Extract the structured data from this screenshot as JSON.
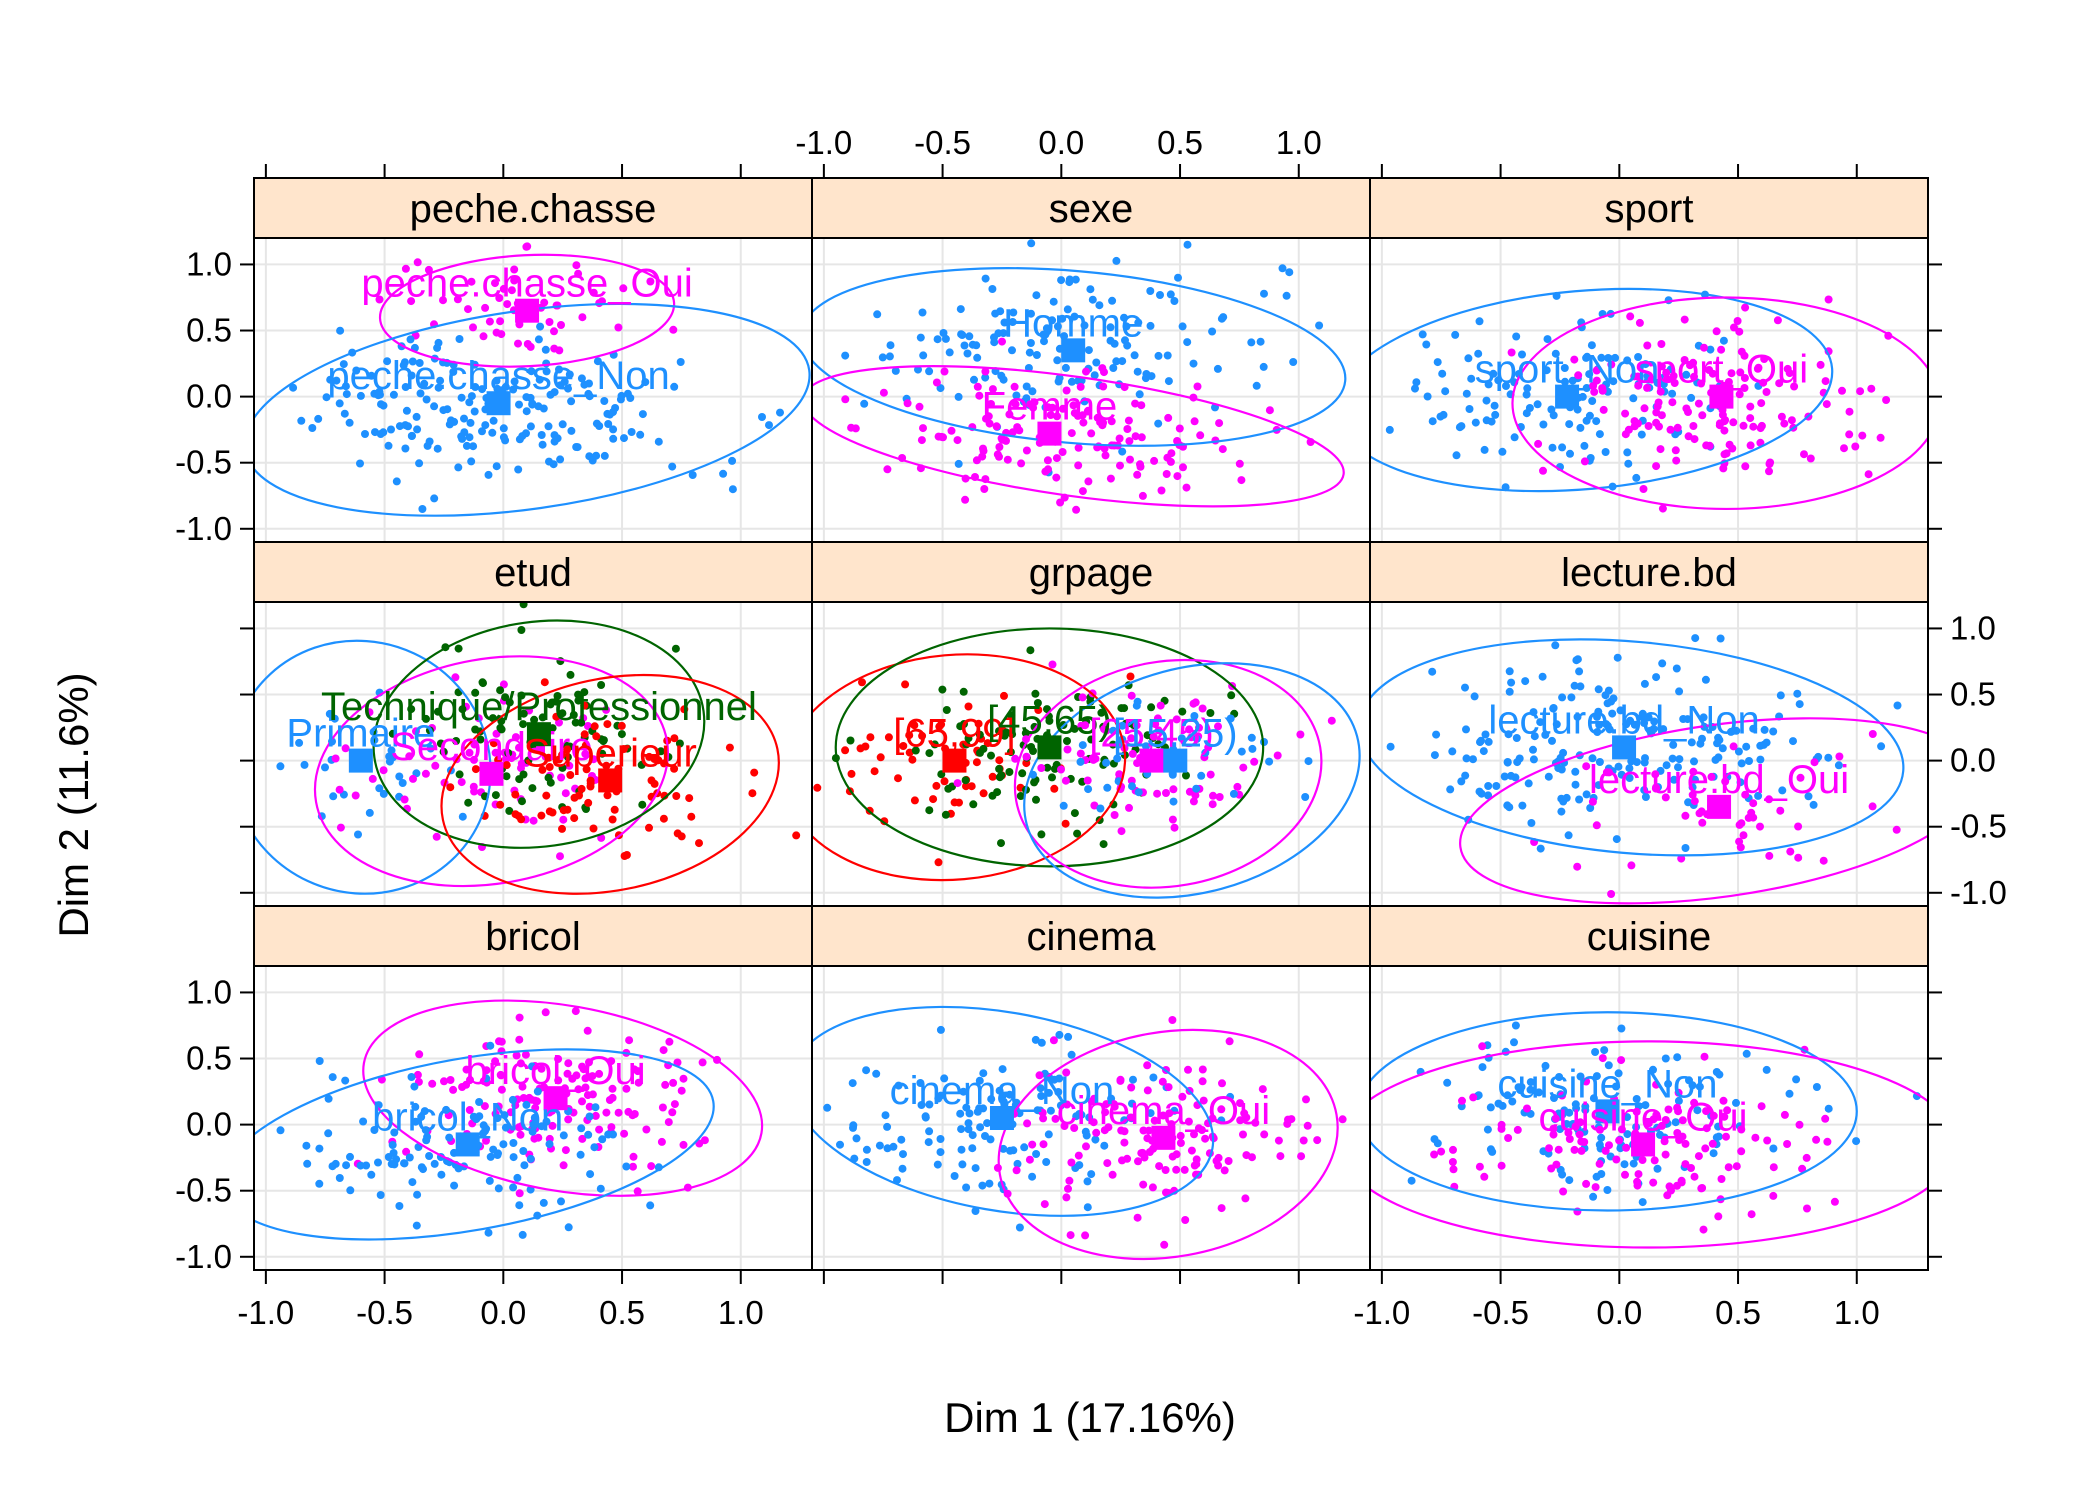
{
  "chart_data": {
    "type": "scatter",
    "xlabel": "Dim 1 (17.16%)",
    "ylabel": "Dim 2 (11.6%)",
    "xlim": [
      -1.05,
      1.3
    ],
    "ylim": [
      -1.1,
      1.2
    ],
    "x_ticks": [
      -1.0,
      -0.5,
      0.0,
      0.5,
      1.0
    ],
    "x_tick_labels": [
      "-1.0",
      "-0.5",
      "0.0",
      "0.5",
      "1.0"
    ],
    "y_ticks": [
      -1.0,
      -0.5,
      0.0,
      0.5,
      1.0
    ],
    "y_tick_labels": [
      "-1.0",
      "-0.5",
      "0.0",
      "0.5",
      "1.0"
    ],
    "grid": true,
    "colors": {
      "blue": "#1e90ff",
      "magenta": "#ff00ff",
      "red": "#ff0000",
      "green": "#006400",
      "strip_bg": "#ffe5cc",
      "grid": "#e6e6e6"
    },
    "panels": [
      {
        "title": "peche.chasse",
        "categories": [
          {
            "label": "peche.chasse_Oui",
            "x": 0.1,
            "y": 0.65,
            "color": "magenta",
            "ellipse": {
              "cx": 0.1,
              "cy": 0.65,
              "rx": 0.62,
              "ry": 0.42,
              "angle": 3
            },
            "spread": {
              "sx": 0.28,
              "sy": 0.18
            },
            "n": 55
          },
          {
            "label": "peche.chasse_Non",
            "x": -0.02,
            "y": -0.05,
            "color": "blue",
            "ellipse": {
              "cx": 0.1,
              "cy": -0.1,
              "rx": 1.2,
              "ry": 0.75,
              "angle": 8
            },
            "spread": {
              "sx": 0.4,
              "sy": 0.28
            },
            "n": 200
          }
        ]
      },
      {
        "title": "sexe",
        "categories": [
          {
            "label": "Homme",
            "x": 0.05,
            "y": 0.35,
            "color": "blue",
            "ellipse": {
              "cx": 0.05,
              "cy": 0.3,
              "rx": 1.15,
              "ry": 0.65,
              "angle": -5
            },
            "spread": {
              "sx": 0.42,
              "sy": 0.3
            },
            "n": 150
          },
          {
            "label": "Femme",
            "x": -0.05,
            "y": -0.28,
            "color": "magenta",
            "ellipse": {
              "cx": 0.05,
              "cy": -0.3,
              "rx": 1.15,
              "ry": 0.45,
              "angle": -8
            },
            "spread": {
              "sx": 0.42,
              "sy": 0.25
            },
            "n": 150
          }
        ]
      },
      {
        "title": "sport",
        "categories": [
          {
            "label": "sport_Non",
            "x": -0.22,
            "y": 0.0,
            "color": "blue",
            "ellipse": {
              "cx": -0.15,
              "cy": 0.05,
              "rx": 1.05,
              "ry": 0.75,
              "angle": 5
            },
            "spread": {
              "sx": 0.38,
              "sy": 0.3
            },
            "n": 130
          },
          {
            "label": "sport_Oui",
            "x": 0.43,
            "y": 0.0,
            "color": "magenta",
            "ellipse": {
              "cx": 0.45,
              "cy": -0.05,
              "rx": 0.9,
              "ry": 0.8,
              "angle": 0
            },
            "spread": {
              "sx": 0.32,
              "sy": 0.3
            },
            "n": 150
          }
        ]
      },
      {
        "title": "etud",
        "categories": [
          {
            "label": "Primaire",
            "x": -0.6,
            "y": 0.0,
            "color": "blue",
            "ellipse": {
              "cx": -0.6,
              "cy": -0.05,
              "rx": 0.55,
              "ry": 0.95,
              "angle": -25
            },
            "spread": {
              "sx": 0.22,
              "sy": 0.3
            },
            "n": 30
          },
          {
            "label": "Secondaire",
            "x": -0.05,
            "y": -0.1,
            "color": "magenta",
            "ellipse": {
              "cx": -0.05,
              "cy": -0.08,
              "rx": 0.75,
              "ry": 0.85,
              "angle": 10
            },
            "spread": {
              "sx": 0.28,
              "sy": 0.3
            },
            "n": 70
          },
          {
            "label": "Technique/Professionnel",
            "x": 0.15,
            "y": 0.2,
            "color": "green",
            "ellipse": {
              "cx": 0.15,
              "cy": 0.2,
              "rx": 0.7,
              "ry": 0.85,
              "angle": 8
            },
            "spread": {
              "sx": 0.26,
              "sy": 0.3
            },
            "n": 90
          },
          {
            "label": "Superieur",
            "x": 0.45,
            "y": -0.15,
            "color": "red",
            "ellipse": {
              "cx": 0.45,
              "cy": -0.18,
              "rx": 0.72,
              "ry": 0.8,
              "angle": 12
            },
            "spread": {
              "sx": 0.27,
              "sy": 0.28
            },
            "n": 80
          }
        ]
      },
      {
        "title": "grpage",
        "categories": [
          {
            "label": "[65,99]",
            "x": -0.45,
            "y": 0.0,
            "color": "red",
            "ellipse": {
              "cx": -0.45,
              "cy": -0.05,
              "rx": 0.72,
              "ry": 0.85,
              "angle": 5
            },
            "spread": {
              "sx": 0.25,
              "sy": 0.28
            },
            "n": 60
          },
          {
            "label": "[45,65)",
            "x": -0.05,
            "y": 0.1,
            "color": "green",
            "ellipse": {
              "cx": -0.05,
              "cy": 0.1,
              "rx": 0.9,
              "ry": 0.9,
              "angle": 0
            },
            "spread": {
              "sx": 0.3,
              "sy": 0.3
            },
            "n": 110
          },
          {
            "label": "[25,45)",
            "x": 0.38,
            "y": 0.0,
            "color": "magenta",
            "ellipse": {
              "cx": 0.45,
              "cy": -0.1,
              "rx": 0.65,
              "ry": 0.85,
              "angle": 10
            },
            "spread": {
              "sx": 0.25,
              "sy": 0.28
            },
            "n": 80
          },
          {
            "label": "[15,25)",
            "x": 0.48,
            "y": 0.0,
            "color": "blue",
            "ellipse": {
              "cx": 0.55,
              "cy": -0.15,
              "rx": 0.72,
              "ry": 0.85,
              "angle": 15
            },
            "spread": {
              "sx": 0.25,
              "sy": 0.25
            },
            "n": 40
          }
        ]
      },
      {
        "title": "lecture.bd",
        "categories": [
          {
            "label": "lecture.bd_Non",
            "x": 0.02,
            "y": 0.1,
            "color": "blue",
            "ellipse": {
              "cx": 0.05,
              "cy": 0.1,
              "rx": 1.15,
              "ry": 0.8,
              "angle": -5
            },
            "spread": {
              "sx": 0.42,
              "sy": 0.3
            },
            "n": 200
          },
          {
            "label": "lecture.bd_Oui",
            "x": 0.42,
            "y": -0.35,
            "color": "magenta",
            "ellipse": {
              "cx": 0.42,
              "cy": -0.38,
              "rx": 1.1,
              "ry": 0.65,
              "angle": 8
            },
            "spread": {
              "sx": 0.35,
              "sy": 0.25
            },
            "n": 50
          }
        ]
      },
      {
        "title": "bricol",
        "categories": [
          {
            "label": "bricol_Oui",
            "x": 0.22,
            "y": 0.2,
            "color": "magenta",
            "ellipse": {
              "cx": 0.25,
              "cy": 0.2,
              "rx": 0.85,
              "ry": 0.7,
              "angle": -10
            },
            "spread": {
              "sx": 0.32,
              "sy": 0.28
            },
            "n": 150
          },
          {
            "label": "bricol_Non",
            "x": -0.15,
            "y": -0.15,
            "color": "blue",
            "ellipse": {
              "cx": -0.15,
              "cy": -0.15,
              "rx": 1.05,
              "ry": 0.65,
              "angle": 10
            },
            "spread": {
              "sx": 0.35,
              "sy": 0.28
            },
            "n": 130
          }
        ]
      },
      {
        "title": "cinema",
        "categories": [
          {
            "label": "cinema_Non",
            "x": -0.25,
            "y": 0.05,
            "color": "blue",
            "ellipse": {
              "cx": -0.25,
              "cy": 0.1,
              "rx": 0.9,
              "ry": 0.75,
              "angle": -10
            },
            "spread": {
              "sx": 0.32,
              "sy": 0.3
            },
            "n": 130
          },
          {
            "label": "cinema_Oui",
            "x": 0.43,
            "y": -0.1,
            "color": "magenta",
            "ellipse": {
              "cx": 0.45,
              "cy": -0.15,
              "rx": 0.72,
              "ry": 0.85,
              "angle": 10
            },
            "spread": {
              "sx": 0.3,
              "sy": 0.3
            },
            "n": 140
          }
        ]
      },
      {
        "title": "cuisine",
        "categories": [
          {
            "label": "cuisine_Non",
            "x": -0.05,
            "y": 0.1,
            "color": "blue",
            "ellipse": {
              "cx": -0.05,
              "cy": 0.1,
              "rx": 1.05,
              "ry": 0.75,
              "angle": 0
            },
            "spread": {
              "sx": 0.38,
              "sy": 0.28
            },
            "n": 130
          },
          {
            "label": "cuisine_Oui",
            "x": 0.1,
            "y": -0.15,
            "color": "magenta",
            "ellipse": {
              "cx": 0.12,
              "cy": -0.15,
              "rx": 1.3,
              "ry": 0.78,
              "angle": 0
            },
            "spread": {
              "sx": 0.4,
              "sy": 0.28
            },
            "n": 130
          }
        ]
      }
    ]
  }
}
